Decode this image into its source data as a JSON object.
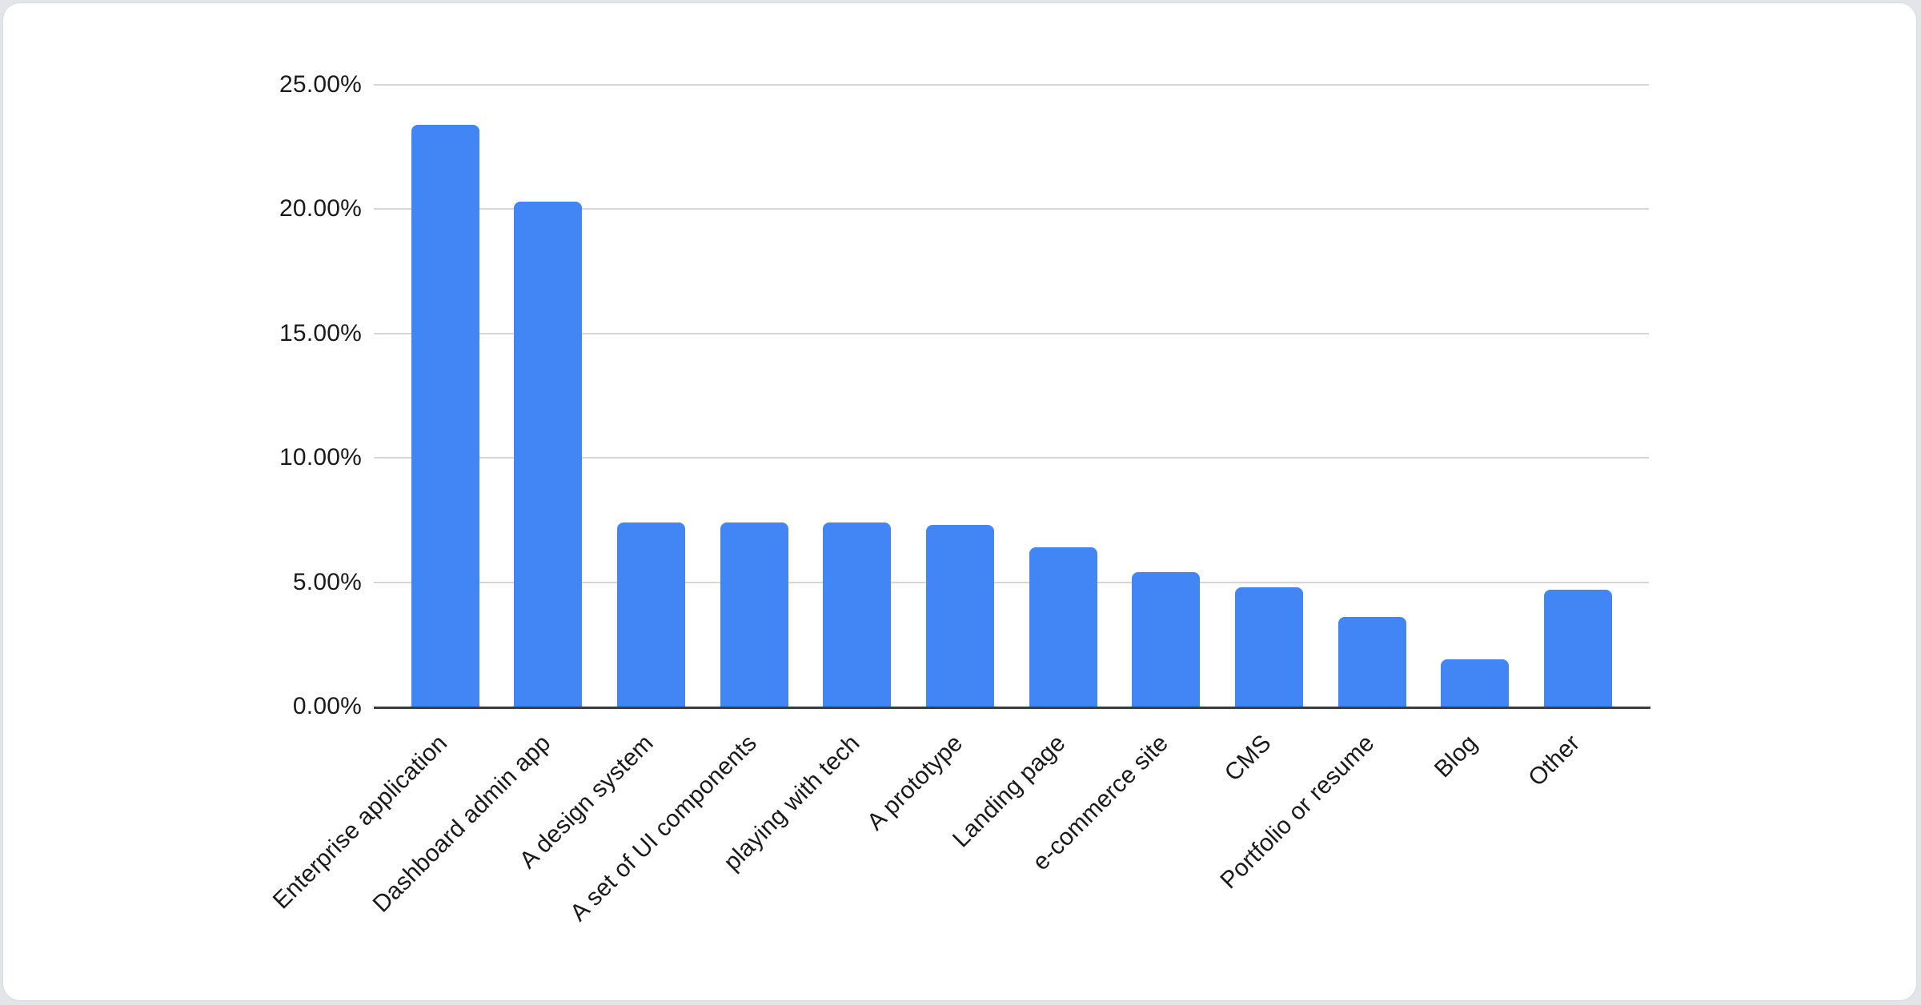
{
  "page": {
    "background": "#e3e5e8",
    "card_background": "#ffffff",
    "card_border": "#d8dade"
  },
  "chart_data": {
    "type": "bar",
    "title": "",
    "xlabel": "",
    "ylabel": "",
    "categories": [
      "Enterprise application",
      "Dashboard admin app",
      "A design system",
      "A set of UI components",
      "playing with tech",
      "A prototype",
      "Landing page",
      "e-commerce site",
      "CMS",
      "Portfolio or resume",
      "Blog",
      "Other"
    ],
    "values": [
      23.4,
      20.3,
      7.4,
      7.4,
      7.4,
      7.3,
      6.4,
      5.4,
      4.8,
      3.6,
      1.9,
      4.7
    ],
    "value_unit": "percent",
    "ylim": [
      0,
      25
    ],
    "y_tick_interval": 5,
    "y_tick_labels": [
      "0.00%",
      "5.00%",
      "10.00%",
      "15.00%",
      "20.00%",
      "25.00%"
    ],
    "grid": true,
    "legend": "none",
    "x_label_rotation_deg": -45,
    "colors": {
      "bar": "#4285f4",
      "gridline": "#d6d6d6",
      "axis_line": "#3c3c3c",
      "label": "#1a1a1a"
    }
  }
}
